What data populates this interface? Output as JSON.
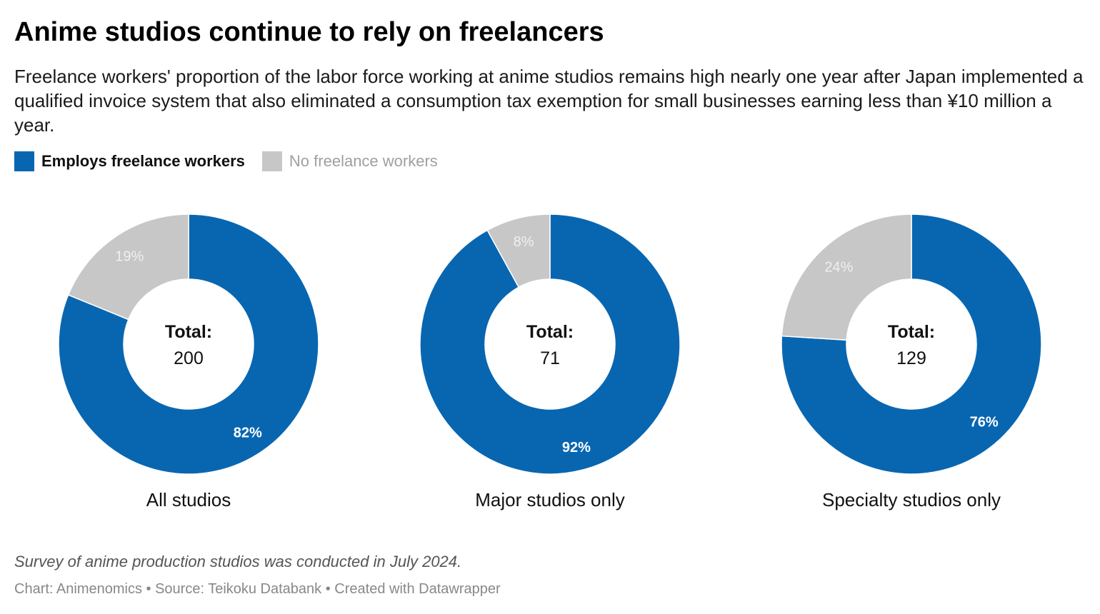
{
  "title": "Anime studios continue to rely on freelancers",
  "subtitle": "Freelance workers' proportion of the labor force working at anime studios remains high nearly one year after Japan implemented a qualified invoice system that also eliminated a consumption tax exemption for small businesses earning less than ¥10 million a year.",
  "legend": [
    {
      "label": "Employs freelance workers",
      "color": "#0866b1"
    },
    {
      "label": "No freelance workers",
      "color": "#c7c7c7"
    }
  ],
  "chart_data": [
    {
      "type": "pie",
      "title": "All studios",
      "center_label": "Total:",
      "total": "200",
      "slices": [
        {
          "name": "Employs freelance workers",
          "value": 82,
          "label": "82%",
          "color": "#0866b1"
        },
        {
          "name": "No freelance workers",
          "value": 19,
          "label": "19%",
          "color": "#c7c7c7"
        }
      ]
    },
    {
      "type": "pie",
      "title": "Major studios only",
      "center_label": "Total:",
      "total": "71",
      "slices": [
        {
          "name": "Employs freelance workers",
          "value": 92,
          "label": "92%",
          "color": "#0866b1"
        },
        {
          "name": "No freelance workers",
          "value": 8,
          "label": "8%",
          "color": "#c7c7c7"
        }
      ]
    },
    {
      "type": "pie",
      "title": "Specialty studios only",
      "center_label": "Total:",
      "total": "129",
      "slices": [
        {
          "name": "Employs freelance workers",
          "value": 76,
          "label": "76%",
          "color": "#0866b1"
        },
        {
          "name": "No freelance workers",
          "value": 24,
          "label": "24%",
          "color": "#c7c7c7"
        }
      ]
    }
  ],
  "note": "Survey of anime production studios was conducted in July 2024.",
  "credit": "Chart: Animenomics • Source: Teikoku Databank • Created with Datawrapper"
}
